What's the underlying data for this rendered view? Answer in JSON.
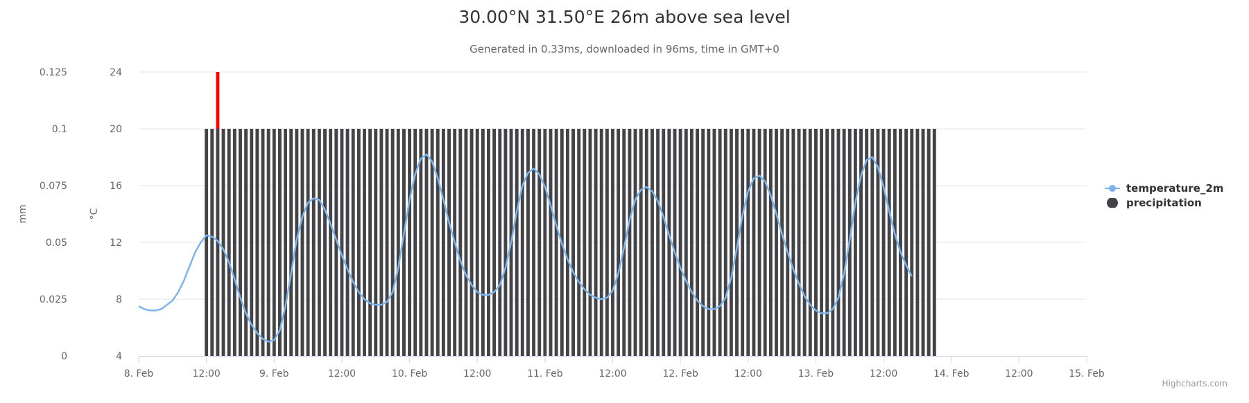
{
  "chart_data": {
    "type": "line",
    "title": "30.00°N 31.50°E 26m above sea level",
    "subtitle": "Generated in 0.33ms, downloaded in 96ms, time in GMT+0",
    "credits": "Highcharts.com",
    "x_ticks": [
      "8. Feb",
      "12:00",
      "9. Feb",
      "12:00",
      "10. Feb",
      "12:00",
      "11. Feb",
      "12:00",
      "12. Feb",
      "12:00",
      "13. Feb",
      "12:00",
      "14. Feb",
      "12:00",
      "15. Feb"
    ],
    "x_range": [
      "2024-02-08T00:00",
      "2024-02-15T00:00"
    ],
    "y_axes": [
      {
        "name": "temperature",
        "title": "°C",
        "range": [
          4,
          24
        ],
        "ticks": [
          "4",
          "8",
          "12",
          "16",
          "20",
          "24"
        ]
      },
      {
        "name": "precipitation",
        "title": "mm",
        "range": [
          0,
          0.125
        ],
        "ticks": [
          "0",
          "0.025",
          "0.05",
          "0.075",
          "0.1",
          "0.125"
        ]
      }
    ],
    "series": [
      {
        "name": "temperature_2m",
        "color": "#7cb5ec",
        "axis": "°C",
        "kind": "line",
        "start": "2024-02-08T00:00",
        "interval": "1h",
        "values": [
          7.5,
          7.3,
          7.2,
          7.2,
          7.3,
          7.6,
          7.9,
          8.5,
          9.3,
          10.3,
          11.3,
          12.0,
          12.5,
          12.4,
          12.1,
          11.5,
          10.6,
          9.4,
          8.1,
          7.0,
          6.2,
          5.6,
          5.2,
          5.0,
          5.1,
          5.8,
          7.5,
          9.8,
          12.2,
          13.8,
          14.8,
          15.1,
          15.0,
          14.3,
          13.3,
          12.2,
          11.1,
          10.1,
          9.2,
          8.5,
          8.0,
          7.7,
          7.6,
          7.6,
          7.8,
          8.5,
          10.2,
          12.6,
          15.0,
          16.8,
          17.9,
          18.2,
          17.7,
          16.5,
          15.0,
          13.4,
          12.0,
          10.7,
          9.7,
          9.0,
          8.5,
          8.3,
          8.3,
          8.5,
          9.0,
          10.2,
          12.0,
          14.2,
          16.0,
          16.9,
          17.2,
          16.8,
          15.9,
          14.6,
          13.2,
          11.9,
          10.8,
          9.9,
          9.2,
          8.7,
          8.3,
          8.1,
          8.0,
          8.1,
          8.6,
          9.8,
          11.6,
          13.6,
          15.0,
          15.7,
          15.9,
          15.6,
          14.9,
          13.8,
          12.5,
          11.3,
          10.2,
          9.3,
          8.5,
          7.9,
          7.5,
          7.3,
          7.3,
          7.5,
          8.1,
          9.5,
          11.6,
          13.9,
          15.6,
          16.5,
          16.7,
          16.3,
          15.3,
          14.0,
          12.6,
          11.3,
          10.1,
          9.1,
          8.2,
          7.6,
          7.2,
          7.0,
          7.0,
          7.3,
          8.1,
          9.8,
          12.2,
          14.8,
          16.7,
          17.8,
          18.0,
          17.3,
          15.9,
          14.2,
          12.6,
          11.3,
          10.4,
          9.6
        ]
      },
      {
        "name": "precipitation",
        "color": "#434348",
        "axis": "mm",
        "kind": "column",
        "start": "2024-02-08T12:00",
        "interval": "1h",
        "count": 130,
        "value": 0.1
      }
    ],
    "now_marker": {
      "time": "2024-02-08T14:00",
      "color": "#ff0000",
      "value": 0.125
    },
    "legend": {
      "placement": "right",
      "items": [
        "temperature_2m",
        "precipitation"
      ]
    },
    "grid": true
  }
}
